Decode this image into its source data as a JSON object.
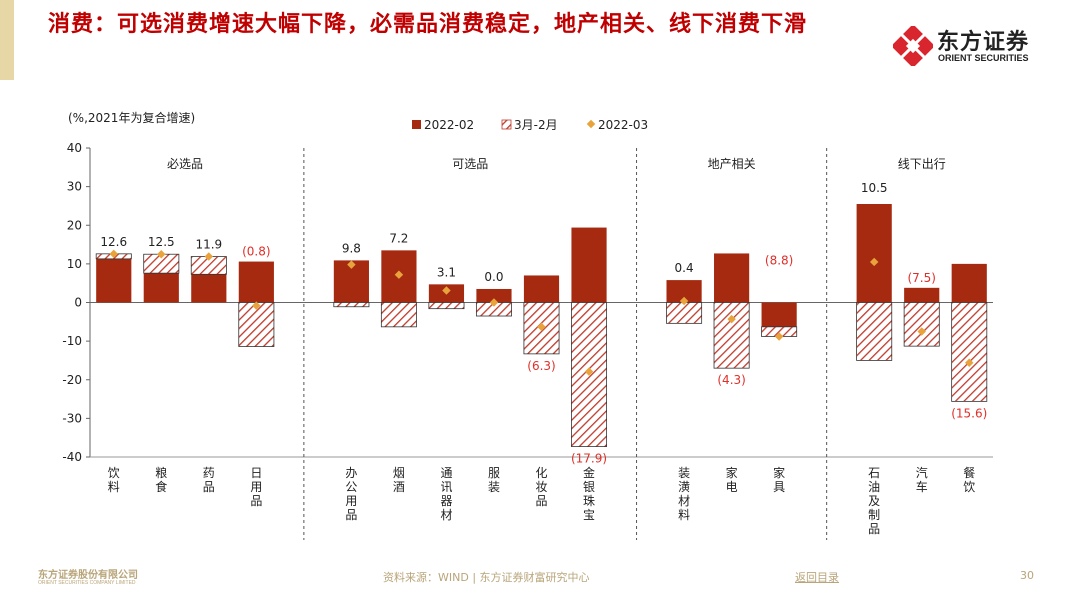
{
  "slide": {
    "title": "消费：可选消费增速大幅下降，必需品消费稳定，地产相关、线下消费下滑",
    "page_number": "30"
  },
  "brand": {
    "name_cn": "东方证券",
    "name_en": "ORIENT SECURITIES",
    "accent_color": "#c00000",
    "logo_color": "#d9262e"
  },
  "footer": {
    "company_cn": "东方证券股份有限公司",
    "company_en": "ORIENT SECURITIES COMPANY LIMITED",
    "source": "资料来源：WIND | 东方证券财富研究中心",
    "back_link": "返回目录"
  },
  "chart_data": {
    "type": "bar",
    "unit_note": "(%,2021年为复合增速)",
    "ylim": [
      -40,
      40
    ],
    "yticks": [
      40,
      30,
      20,
      10,
      0,
      -10,
      -20,
      -30,
      -40
    ],
    "legend": [
      "2022-02",
      "3月-2月",
      "2022-03"
    ],
    "legend_position": "top",
    "colors": {
      "feb": "#a52a10",
      "diff": "#c0392b",
      "mar": "#e8a33c"
    },
    "groups": [
      {
        "name": "必选品",
        "categories": [
          "饮料",
          "粮食",
          "药品",
          "日用品"
        ]
      },
      {
        "name": "可选品",
        "categories": [
          "办公用品",
          "烟酒",
          "通讯器材",
          "服装",
          "化妆品",
          "金银珠宝"
        ]
      },
      {
        "name": "地产相关",
        "categories": [
          "装潢材料",
          "家电",
          "家具"
        ]
      },
      {
        "name": "线下出行",
        "categories": [
          "石油及制品",
          "汽车",
          "餐饮"
        ]
      }
    ],
    "series": [
      {
        "name": "2022-02",
        "values": [
          11.3,
          7.6,
          7.3,
          10.6,
          10.9,
          13.5,
          4.7,
          3.5,
          7.0,
          19.4,
          5.8,
          12.7,
          -6.3,
          25.5,
          3.8,
          10.0
        ]
      },
      {
        "name": "3月-2月",
        "values": [
          1.3,
          4.9,
          4.6,
          -11.4,
          -1.1,
          -6.3,
          -1.6,
          -3.5,
          -13.3,
          -37.3,
          -5.4,
          -17.0,
          -2.5,
          -15.0,
          -11.3,
          -25.6
        ]
      },
      {
        "name": "2022-03",
        "values": [
          12.6,
          12.5,
          11.9,
          -0.8,
          9.8,
          7.2,
          3.1,
          0.0,
          -6.3,
          -17.9,
          0.4,
          -4.3,
          -8.8,
          10.5,
          -7.5,
          -15.6
        ]
      }
    ],
    "data_labels": [
      "12.6",
      "12.5",
      "11.9",
      "(0.8)",
      "9.8",
      "7.2",
      "3.1",
      "0.0",
      "(6.3)",
      "(17.9)",
      "0.4",
      "(4.3)",
      "(8.8)",
      "10.5",
      "(7.5)",
      "(15.6)"
    ]
  }
}
